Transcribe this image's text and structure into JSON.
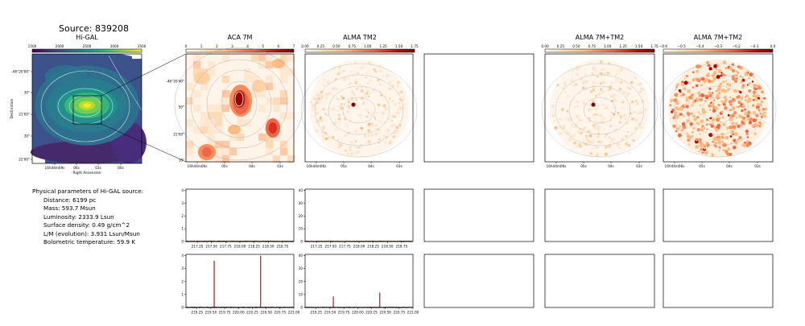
{
  "source_title": "Source: 839208",
  "panel_titles": {
    "higal": "Hi-GAL",
    "aca": "ACA 7M",
    "alma_tm2": "ALMA TM2",
    "alma_7m_tm2_a": "ALMA 7M+TM2",
    "alma_7m_tm2_b": "ALMA 7M+TM2"
  },
  "colorbars": {
    "higal": {
      "ticks": [
        "1500",
        "2000",
        "2500",
        "3000",
        "3500"
      ],
      "colormap": "viridis"
    },
    "aca": {
      "ticks": [
        "0",
        "1",
        "2",
        "3",
        "4",
        "5",
        "6",
        "7"
      ],
      "colormap": "OrRd"
    },
    "alma_tm2": {
      "ticks": [
        "0.00",
        "0.25",
        "0.50",
        "0.75",
        "1.00",
        "1.25",
        "1.50",
        "1.75"
      ],
      "colormap": "OrRd"
    },
    "alma_7m_tm2_a": {
      "ticks": [
        "0.00",
        "0.25",
        "0.50",
        "0.75",
        "1.00",
        "1.25",
        "1.50",
        "1.75"
      ],
      "colormap": "OrRd"
    },
    "alma_7m_tm2_b": {
      "ticks": [
        "−0.6",
        "−0.5",
        "−0.4",
        "−0.3",
        "−0.2",
        "−0.1",
        "0.0"
      ],
      "colormap": "OrRd"
    }
  },
  "higal_axes": {
    "xlabel": "Right Ascension",
    "ylabel": "Declination",
    "yticks": [
      "-46°20'00\"",
      "30\"",
      "21'00\"",
      "30\"",
      "22'00\""
    ],
    "xticks": [
      "16h44m09s",
      "06s",
      "03s",
      "00s"
    ]
  },
  "zoom_axes": {
    "yticks": [
      "-46°20'40\"",
      "50\"",
      "21'00\"",
      "10\""
    ],
    "xticks": [
      "16h44m06s",
      "05s",
      "04s",
      "03s"
    ]
  },
  "parameters": {
    "heading": "Physical parameters of Hi-GAL source:",
    "lines": [
      "Distance: 6199 pc",
      "Mass: 593.7 Msun",
      "Luminosity: 2333.9 Lsun",
      "Surface density: 0.49 g/cm^2",
      "L/M (evolution): 3.931 Lsun/Msun",
      "Bolometric temperature: 59.9 K"
    ]
  },
  "chart_data": [
    {
      "type": "line",
      "panel": "spectrum-aca-row1",
      "x_ticks": [
        "217.25",
        "217.50",
        "217.75",
        "218.00",
        "218.25",
        "218.50",
        "218.75"
      ],
      "xlim": [
        217.05,
        218.95
      ],
      "y_ticks": [
        "0",
        "1",
        "2",
        "3",
        "4"
      ],
      "ylim": [
        0,
        4.1
      ],
      "noise_level": 0.02,
      "peaks": []
    },
    {
      "type": "line",
      "panel": "spectrum-tm2-row1",
      "x_ticks": [
        "217.25",
        "217.50",
        "217.75",
        "218.00",
        "218.25",
        "218.50",
        "218.75"
      ],
      "xlim": [
        217.05,
        218.95
      ],
      "y_ticks": [
        "0",
        "10",
        "20",
        "30",
        "40"
      ],
      "ylim": [
        0,
        41
      ],
      "noise_level": 0.15,
      "peaks": []
    },
    {
      "type": "line",
      "panel": "spectrum-aca-row2",
      "x_ticks": [
        "219.25",
        "219.50",
        "219.75",
        "220.00",
        "220.25",
        "220.50",
        "220.75",
        "221.00"
      ],
      "xlim": [
        219.05,
        221.0
      ],
      "y_ticks": [
        "0",
        "1",
        "2",
        "3",
        "4"
      ],
      "ylim": [
        0,
        4.1
      ],
      "noise_level": 0.02,
      "peaks": [
        {
          "x": 219.56,
          "y": 3.6
        },
        {
          "x": 220.4,
          "y": 4.0
        }
      ]
    },
    {
      "type": "line",
      "panel": "spectrum-tm2-row2",
      "x_ticks": [
        "219.25",
        "219.50",
        "219.75",
        "220.00",
        "220.25",
        "220.50",
        "220.75",
        "221.00"
      ],
      "xlim": [
        219.05,
        221.0
      ],
      "y_ticks": [
        "0",
        "10",
        "20",
        "30",
        "40"
      ],
      "ylim": [
        0,
        41
      ],
      "noise_level": 0.15,
      "peaks": [
        {
          "x": 219.56,
          "y": 8.5
        },
        {
          "x": 220.4,
          "y": 11.5
        }
      ]
    }
  ]
}
